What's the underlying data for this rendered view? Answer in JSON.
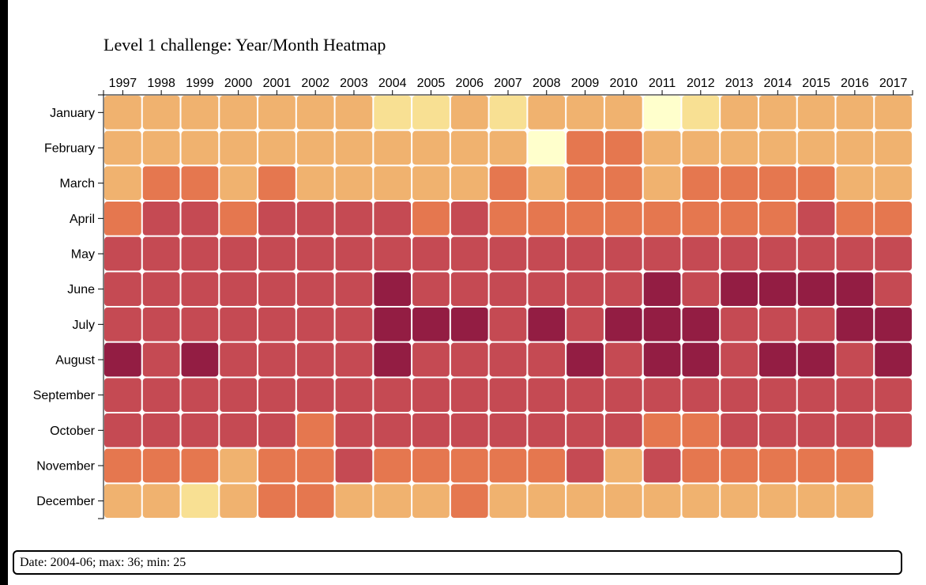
{
  "chart_data": {
    "type": "heatmap",
    "title": "Level 1 challenge: Year/Month Heatmap",
    "x_categories": [
      "1997",
      "1998",
      "1999",
      "2000",
      "2001",
      "2002",
      "2003",
      "2004",
      "2005",
      "2006",
      "2007",
      "2008",
      "2009",
      "2010",
      "2011",
      "2012",
      "2013",
      "2014",
      "2015",
      "2016",
      "2017"
    ],
    "y_categories": [
      "January",
      "February",
      "March",
      "April",
      "May",
      "June",
      "July",
      "August",
      "September",
      "October",
      "November",
      "December"
    ],
    "color_levels": [
      "#ffffcc",
      "#f8e093",
      "#f0b26f",
      "#e5774f",
      "#c54a53",
      "#931d43"
    ],
    "values": [
      [
        2,
        2,
        2,
        2,
        2,
        2,
        2,
        1,
        1,
        2,
        1,
        2,
        2,
        2,
        0,
        1,
        2,
        2,
        2,
        2,
        2
      ],
      [
        2,
        2,
        2,
        2,
        2,
        2,
        2,
        2,
        2,
        2,
        2,
        0,
        3,
        3,
        2,
        2,
        2,
        2,
        2,
        2,
        2
      ],
      [
        2,
        3,
        3,
        2,
        3,
        2,
        2,
        2,
        2,
        2,
        3,
        2,
        3,
        3,
        2,
        3,
        3,
        3,
        3,
        2,
        2
      ],
      [
        3,
        4,
        4,
        3,
        4,
        4,
        4,
        4,
        3,
        4,
        3,
        3,
        3,
        3,
        3,
        3,
        3,
        3,
        4,
        3,
        3
      ],
      [
        4,
        4,
        4,
        4,
        4,
        4,
        4,
        4,
        4,
        4,
        4,
        4,
        4,
        4,
        4,
        4,
        4,
        4,
        4,
        4,
        4
      ],
      [
        4,
        4,
        4,
        4,
        4,
        4,
        4,
        5,
        4,
        4,
        4,
        4,
        4,
        4,
        5,
        4,
        5,
        5,
        5,
        5,
        4
      ],
      [
        4,
        4,
        4,
        4,
        4,
        4,
        4,
        5,
        5,
        5,
        4,
        5,
        4,
        5,
        5,
        5,
        4,
        4,
        4,
        5,
        5
      ],
      [
        5,
        4,
        5,
        4,
        4,
        4,
        4,
        5,
        4,
        4,
        4,
        4,
        5,
        4,
        5,
        5,
        4,
        5,
        5,
        4,
        5
      ],
      [
        4,
        4,
        4,
        4,
        4,
        4,
        4,
        4,
        4,
        4,
        4,
        4,
        4,
        4,
        4,
        4,
        4,
        4,
        4,
        4,
        4
      ],
      [
        4,
        4,
        4,
        4,
        4,
        3,
        4,
        4,
        4,
        4,
        4,
        4,
        4,
        4,
        3,
        3,
        4,
        4,
        4,
        4,
        4
      ],
      [
        3,
        3,
        3,
        2,
        3,
        3,
        4,
        3,
        3,
        3,
        3,
        3,
        4,
        2,
        4,
        3,
        3,
        3,
        3,
        3,
        null
      ],
      [
        2,
        2,
        1,
        2,
        3,
        3,
        2,
        2,
        2,
        3,
        2,
        2,
        2,
        2,
        2,
        2,
        2,
        2,
        2,
        2,
        null
      ]
    ]
  },
  "tooltip": {
    "text": "Date: 2004-06; max: 36; min: 25"
  }
}
